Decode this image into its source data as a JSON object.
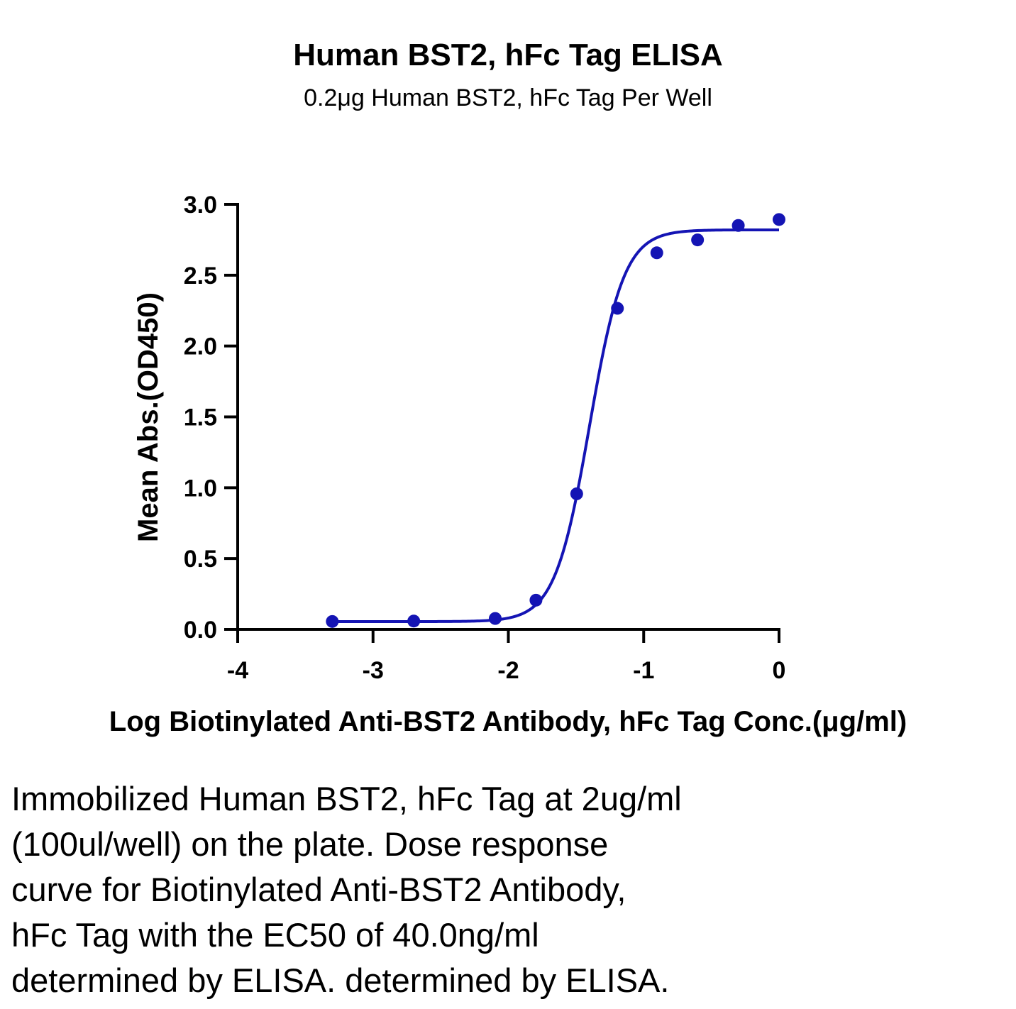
{
  "chart_data": {
    "type": "scatter",
    "title": "Human BST2, hFc Tag ELISA",
    "subtitle": "0.2μg Human BST2, hFc Tag Per Well",
    "xlabel": "Log Biotinylated Anti-BST2 Antibody, hFc Tag Conc.(μg/ml)",
    "ylabel": "Mean Abs.(OD450)",
    "xlim": [
      -4,
      0
    ],
    "ylim": [
      0,
      3.0
    ],
    "x_ticks": [
      "-4",
      "-3",
      "-2",
      "-1",
      "0"
    ],
    "y_ticks": [
      "0.0",
      "0.5",
      "1.0",
      "1.5",
      "2.0",
      "2.5",
      "3.0"
    ],
    "grid": false,
    "color": "#1414b4",
    "points": {
      "x": [
        -3.301,
        -2.699,
        -2.097,
        -1.796,
        -1.495,
        -1.194,
        -0.903,
        -0.602,
        -0.301,
        0.0
      ],
      "y": [
        0.056,
        0.059,
        0.077,
        0.206,
        0.957,
        2.266,
        2.658,
        2.749,
        2.851,
        2.893
      ]
    },
    "fit": {
      "model": "4PL",
      "bottom": 0.055,
      "top": 2.82,
      "log_ec50": -1.4,
      "hill_slope": 3.4,
      "x_range": [
        -3.301,
        0.0
      ]
    }
  },
  "caption": "Immobilized Human BST2, hFc Tag at 2ug/ml\n(100ul/well) on the plate. Dose response\ncurve for Biotinylated Anti-BST2 Antibody,\nhFc Tag with the EC50 of 40.0ng/ml\ndetermined by ELISA. determined by ELISA."
}
